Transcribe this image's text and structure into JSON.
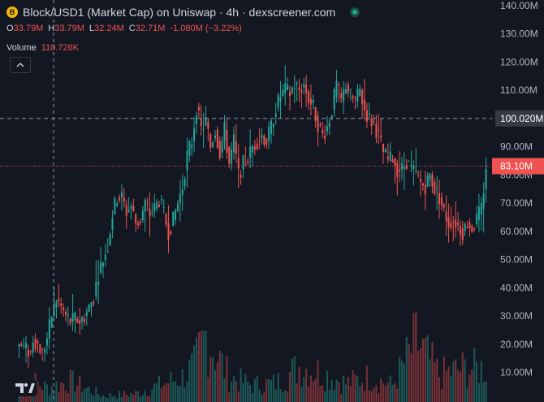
{
  "header": {
    "logo_letter": "B",
    "title": "Block/USD1 (Market Cap) on Uniswap · 4h · dexscreener.com"
  },
  "ohlc": {
    "o_label": "O",
    "o_value": "33.79M",
    "h_label": "H",
    "h_value": "33.79M",
    "l_label": "L",
    "l_value": "32.24M",
    "c_label": "C",
    "c_value": "32.71M",
    "change": "-1.080M (−3.22%)"
  },
  "volume": {
    "label": "Volume",
    "value": "110.726K"
  },
  "collapse_icon": "chevron-up-icon",
  "tv_logo": "tradingview-logo",
  "colors": {
    "background": "#131722",
    "up": "#26a69a",
    "down": "#ef5350",
    "grid": "#1e222d",
    "axis_text": "#b2b5be",
    "crosshair": "#9598a1"
  },
  "chart_data": {
    "type": "candlestick",
    "y_axis_ticks": [
      "140.00M",
      "130.00M",
      "120.00M",
      "110.00M",
      "100.00M",
      "90.00M",
      "80.00M",
      "70.00M",
      "60.00M",
      "50.00M",
      "40.00M",
      "30.00M",
      "20.00M",
      "10.00M"
    ],
    "y_axis_values": [
      140,
      130,
      120,
      110,
      100,
      90,
      80,
      70,
      60,
      50,
      40,
      30,
      20,
      10
    ],
    "ylim": [
      -0.5,
      142
    ],
    "crosshair_label": "100.020M",
    "crosshair_value": 100.02,
    "last_price_label": "83.10M",
    "last_price_value": 83.1,
    "grid": false,
    "series": [
      {
        "name": "Market Cap",
        "close_path": [
          [
            0,
            20
          ],
          [
            3,
            18
          ],
          [
            5,
            17
          ],
          [
            6,
            22
          ],
          [
            8,
            20
          ],
          [
            10,
            17
          ],
          [
            12,
            22
          ],
          [
            14,
            30
          ],
          [
            16,
            36
          ],
          [
            18,
            33
          ],
          [
            20,
            30
          ],
          [
            22,
            28
          ],
          [
            24,
            29
          ],
          [
            26,
            28
          ],
          [
            28,
            30
          ],
          [
            30,
            33
          ],
          [
            32,
            37
          ],
          [
            34,
            45
          ],
          [
            36,
            50
          ],
          [
            38,
            55
          ],
          [
            40,
            66
          ],
          [
            42,
            72
          ],
          [
            44,
            72
          ],
          [
            46,
            67
          ],
          [
            48,
            69
          ],
          [
            50,
            63
          ],
          [
            52,
            64
          ],
          [
            54,
            70
          ],
          [
            56,
            66
          ],
          [
            58,
            68
          ],
          [
            60,
            71
          ],
          [
            62,
            66
          ],
          [
            64,
            60
          ],
          [
            66,
            64
          ],
          [
            68,
            70
          ],
          [
            70,
            76
          ],
          [
            72,
            87
          ],
          [
            74,
            92
          ],
          [
            76,
            104
          ],
          [
            78,
            96
          ],
          [
            80,
            99
          ],
          [
            82,
            90
          ],
          [
            84,
            96
          ],
          [
            86,
            88
          ],
          [
            88,
            96
          ],
          [
            90,
            84
          ],
          [
            92,
            92
          ],
          [
            94,
            80
          ],
          [
            96,
            84
          ],
          [
            98,
            86
          ],
          [
            100,
            90
          ],
          [
            102,
            92
          ],
          [
            104,
            94
          ],
          [
            106,
            92
          ],
          [
            108,
            97
          ],
          [
            110,
            104
          ],
          [
            112,
            108
          ],
          [
            114,
            110
          ],
          [
            116,
            109
          ],
          [
            118,
            112
          ],
          [
            120,
            110
          ],
          [
            122,
            112
          ],
          [
            124,
            107
          ],
          [
            126,
            104
          ],
          [
            128,
            98
          ],
          [
            130,
            94
          ],
          [
            132,
            97
          ],
          [
            134,
            103
          ],
          [
            136,
            112
          ],
          [
            138,
            106
          ],
          [
            140,
            112
          ],
          [
            142,
            108
          ],
          [
            144,
            106
          ],
          [
            146,
            110
          ],
          [
            148,
            103
          ],
          [
            150,
            100
          ],
          [
            152,
            98
          ],
          [
            154,
            94
          ],
          [
            156,
            88
          ],
          [
            158,
            85
          ],
          [
            160,
            86
          ],
          [
            162,
            82
          ],
          [
            164,
            82
          ],
          [
            166,
            85
          ],
          [
            168,
            82
          ],
          [
            170,
            80
          ],
          [
            172,
            77
          ],
          [
            174,
            76
          ],
          [
            176,
            80
          ],
          [
            178,
            75
          ],
          [
            180,
            72
          ],
          [
            182,
            67
          ],
          [
            184,
            63
          ],
          [
            186,
            64
          ],
          [
            188,
            62
          ],
          [
            190,
            60
          ],
          [
            192,
            63
          ],
          [
            194,
            61
          ],
          [
            196,
            64
          ],
          [
            198,
            68
          ],
          [
            199,
            75
          ],
          [
            200,
            83.1
          ]
        ],
        "count": 201
      }
    ],
    "volume_profile_peaks": [
      [
        0,
        6
      ],
      [
        4,
        11
      ],
      [
        12,
        7
      ],
      [
        22,
        10
      ],
      [
        36,
        3
      ],
      [
        50,
        4
      ],
      [
        70,
        12
      ],
      [
        75,
        17
      ],
      [
        80,
        32
      ],
      [
        90,
        12
      ],
      [
        100,
        8
      ],
      [
        110,
        9
      ],
      [
        120,
        17
      ],
      [
        130,
        14
      ],
      [
        140,
        9
      ],
      [
        150,
        12
      ],
      [
        160,
        8
      ],
      [
        170,
        29
      ],
      [
        180,
        13
      ],
      [
        190,
        16
      ],
      [
        200,
        16
      ]
    ],
    "volume_ylim": [
      0,
      130
    ]
  }
}
